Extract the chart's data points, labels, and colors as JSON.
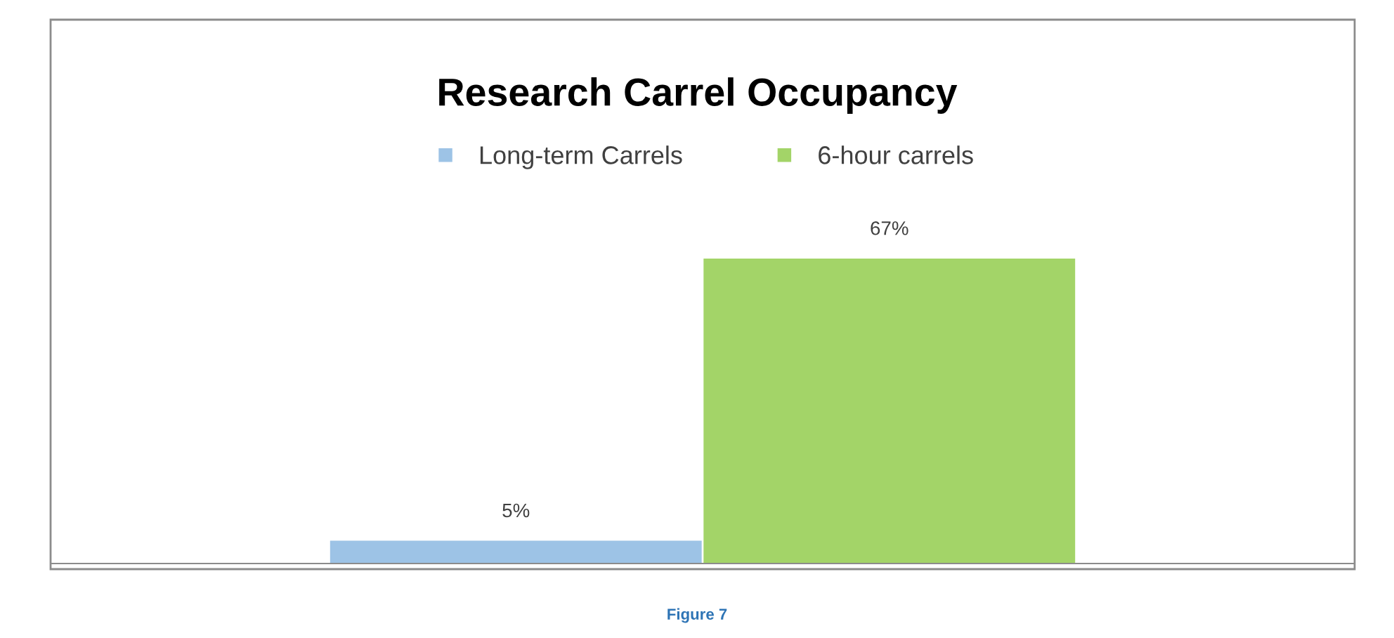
{
  "chart_data": {
    "type": "bar",
    "title": "Research Carrel Occupancy",
    "categories": [
      null
    ],
    "series": [
      {
        "name": "Long-term Carrels",
        "color": "#9dc3e6",
        "values": [
          5
        ],
        "value_labels": [
          "5%"
        ]
      },
      {
        "name": "6-hour carrels",
        "color": "#a3d468",
        "values": [
          67
        ],
        "value_labels": [
          "67%"
        ]
      }
    ],
    "legend": "top",
    "grid": false,
    "annotations": [
      "Figure 7"
    ]
  }
}
